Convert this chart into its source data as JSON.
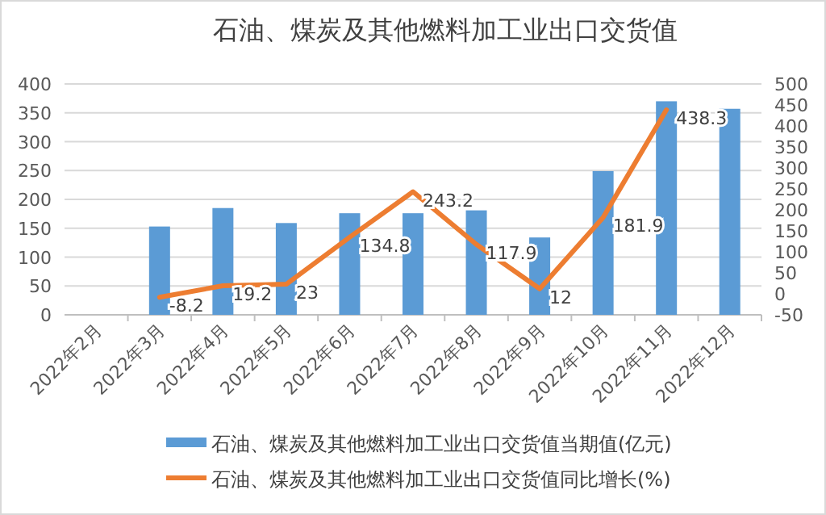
{
  "chart_data": {
    "type": "bar",
    "title": "石油、煤炭及其他燃料加工业出口交货值",
    "categories": [
      "2022年2月",
      "2022年3月",
      "2022年4月",
      "2022年5月",
      "2022年6月",
      "2022年7月",
      "2022年8月",
      "2022年9月",
      "2022年10月",
      "2022年11月",
      "2022年12月"
    ],
    "series": [
      {
        "name": "石油、煤炭及其他燃料加工业出口交货值当期值(亿元)",
        "color": "#5b9bd5",
        "values": [
          null,
          153,
          185,
          159,
          176,
          176,
          181,
          134,
          249,
          370,
          357
        ]
      },
      {
        "name": "石油、煤炭及其他燃料加工业出口交货值同比增长(%)",
        "type": "line",
        "axis": "y2",
        "color": "#ed7d31",
        "data_labels": true,
        "values": [
          null,
          -8.2,
          19.2,
          23,
          134.8,
          243.2,
          117.9,
          12,
          181.9,
          438.3,
          null
        ]
      }
    ],
    "ylim": [
      0,
      400
    ],
    "yticks": [
      0,
      50,
      100,
      150,
      200,
      250,
      300,
      350,
      400
    ],
    "y2lim": [
      -50,
      500
    ],
    "y2ticks": [
      -50,
      0,
      50,
      100,
      150,
      200,
      250,
      300,
      350,
      400,
      450,
      500
    ],
    "grid": "y",
    "legend": "bottom"
  }
}
